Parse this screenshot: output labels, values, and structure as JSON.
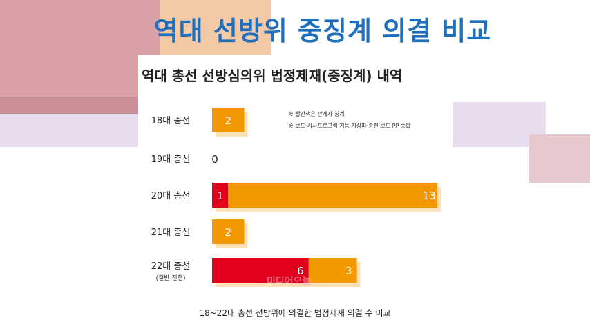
{
  "header": {
    "title": "역대 선방위 중징계 의결 비교"
  },
  "caption": "18~22대 총선 선방위에 의결한 법정제재 의결 수 비교",
  "watermark": "미디어오늘",
  "chart_data": {
    "type": "bar",
    "orientation": "horizontal",
    "stacked": true,
    "title": "역대 총선 선방심의위 법정제재(중징계) 내역",
    "notes": [
      "※ 빨간색은 관계자 징계",
      "※ 보도·시사프로그램 기능 지상파·종편·보도 PP 종합"
    ],
    "categories": [
      {
        "label": "18대 총선",
        "sublabel": ""
      },
      {
        "label": "19대 총선",
        "sublabel": ""
      },
      {
        "label": "20대 총선",
        "sublabel": ""
      },
      {
        "label": "21대 총선",
        "sublabel": ""
      },
      {
        "label": "22대 총선",
        "sublabel": "(절반 진행)"
      }
    ],
    "series": [
      {
        "values": [
          0,
          0,
          1,
          0,
          6
        ],
        "color": "#e0001b"
      },
      {
        "values": [
          2,
          0,
          13,
          2,
          3
        ],
        "color": "#f39800"
      }
    ],
    "shadow_color": "#fde2b8",
    "grid": false
  }
}
